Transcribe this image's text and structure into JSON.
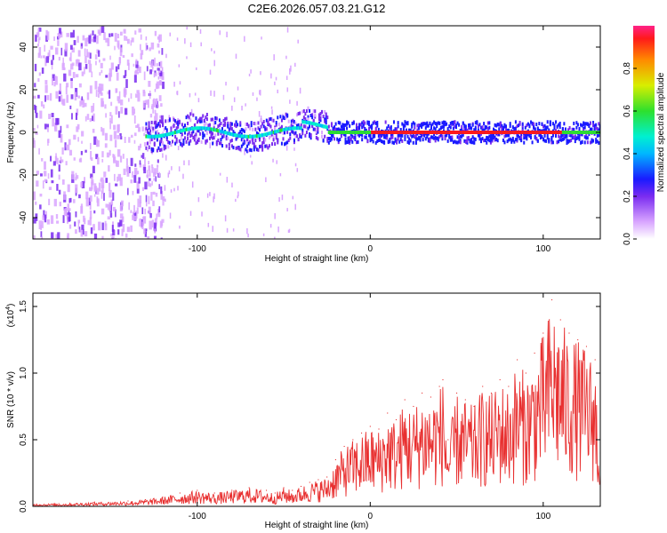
{
  "title": "C2E6.2026.057.03.21.G12",
  "spectrogram": {
    "type": "heatmap",
    "xlabel": "Height of straight line (km)",
    "ylabel": "Frequency (Hz)",
    "xlim": [
      -195,
      133
    ],
    "ylim": [
      -50,
      50
    ],
    "xticks": [
      -100,
      0,
      100
    ],
    "yticks": [
      -40,
      -20,
      0,
      20,
      40
    ],
    "xtick_labels": [
      "-100",
      "0",
      "100"
    ],
    "ytick_labels": [
      "-40",
      "-20",
      "0",
      "20",
      "40"
    ],
    "description_regions": [
      {
        "x_from": -195,
        "x_to": -130,
        "pattern": "broadband noise",
        "amplitude": 0.15
      },
      {
        "x_from": -130,
        "x_to": -25,
        "pattern": "wandering carrier near 0 Hz",
        "amplitude": 0.35
      },
      {
        "x_from": -25,
        "x_to": 133,
        "pattern": "strong carrier at 0 Hz",
        "amplitude": 0.95
      }
    ]
  },
  "colorbar": {
    "label": "Normalized spectral amplitude",
    "range": [
      0.0,
      1.0
    ],
    "ticks": [
      0.0,
      0.2,
      0.4,
      0.6,
      0.8
    ],
    "tick_labels": [
      "0.0",
      "0.2",
      "0.4",
      "0.6",
      "0.8"
    ]
  },
  "chart_data": [
    {
      "type": "line",
      "title": "",
      "xlabel": "Height of straight line (km)",
      "ylabel": "SNR (10 * v/v)",
      "scale_label": "(x10",
      "scale_exp": "4",
      "scale_close": ")",
      "xlim": [
        -195,
        133
      ],
      "ylim": [
        0,
        1.6
      ],
      "xticks": [
        -100,
        0,
        100
      ],
      "xtick_labels": [
        "-100",
        "0",
        "100"
      ],
      "yticks": [
        0.0,
        0.5,
        1.0,
        1.5
      ],
      "ytick_labels": [
        "0.0",
        "0.5",
        "1.0",
        "1.5"
      ],
      "color": "#e83030",
      "series": [
        {
          "name": "SNR",
          "x": [
            -195,
            -180,
            -160,
            -140,
            -130,
            -120,
            -110,
            -100,
            -90,
            -80,
            -70,
            -60,
            -55,
            -50,
            -45,
            -40,
            -35,
            -30,
            -25,
            -20,
            -15,
            -10,
            -5,
            0,
            5,
            10,
            15,
            20,
            25,
            30,
            35,
            40,
            42,
            45,
            50,
            55,
            60,
            65,
            70,
            75,
            80,
            85,
            90,
            95,
            100,
            105,
            110,
            115,
            120,
            125,
            130,
            133
          ],
          "values": [
            0.02,
            0.02,
            0.03,
            0.04,
            0.05,
            0.07,
            0.1,
            0.12,
            0.1,
            0.12,
            0.14,
            0.12,
            0.1,
            0.14,
            0.12,
            0.15,
            0.18,
            0.2,
            0.22,
            0.35,
            0.45,
            0.5,
            0.55,
            0.6,
            0.58,
            0.7,
            0.65,
            0.8,
            0.75,
            0.85,
            0.82,
            0.9,
            0.95,
            0.5,
            0.85,
            0.8,
            0.75,
            0.9,
            0.85,
            0.95,
            0.9,
            1.1,
            1.0,
            1.15,
            1.3,
            1.55,
            1.4,
            1.3,
            1.25,
            1.2,
            1.1,
            0.4
          ]
        }
      ]
    }
  ]
}
